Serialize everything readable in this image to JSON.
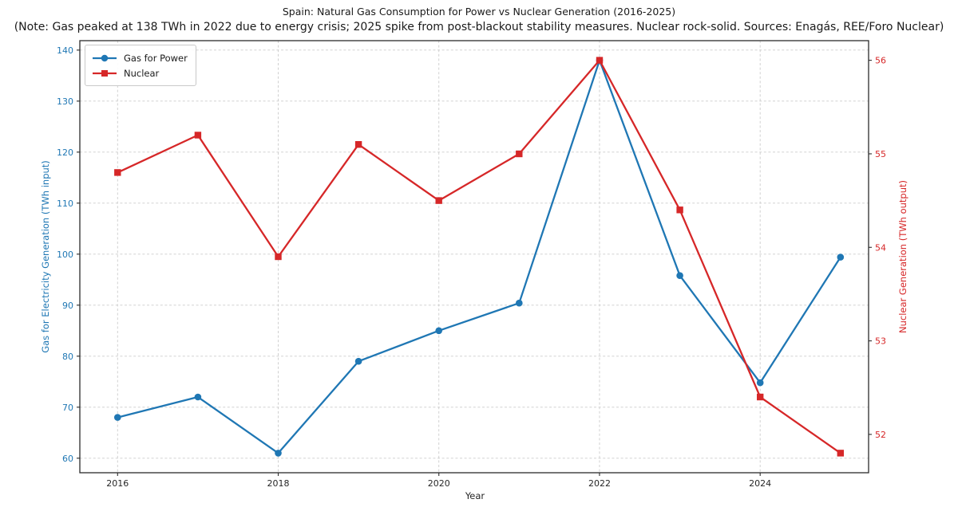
{
  "figure": {
    "title": "Spain: Natural Gas Consumption for Power vs Nuclear Generation (2016-2025)",
    "subtitle": "(Note: Gas peaked at 138 TWh in 2022 due to energy crisis; 2025 spike from post-blackout stability measures. Nuclear rock-solid. Sources: Enagás, REE/Foro Nuclear)"
  },
  "chart_data": {
    "type": "line",
    "x": [
      2016,
      2017,
      2018,
      2019,
      2020,
      2021,
      2022,
      2023,
      2024,
      2025
    ],
    "series": [
      {
        "name": "Gas for Power",
        "axis": "left",
        "color": "#1f77b4",
        "marker": "circle",
        "values": [
          68,
          72,
          61,
          79,
          85,
          90.4,
          138,
          95.8,
          74.8,
          99.4
        ]
      },
      {
        "name": "Nuclear",
        "axis": "right",
        "color": "#d62728",
        "marker": "square",
        "values": [
          54.8,
          55.2,
          53.9,
          55.1,
          54.5,
          55.0,
          56.0,
          54.4,
          52.4,
          51.8
        ]
      }
    ],
    "title": "Spain: Natural Gas Consumption for Power vs Nuclear Generation (2016-2025)",
    "xlabel": "Year",
    "ylabel_left": "Gas for Electricity Generation (TWh input)",
    "ylabel_right": "Nuclear Generation (TWh output)",
    "x_ticks": [
      2016,
      2018,
      2020,
      2022,
      2024
    ],
    "y_ticks_left": [
      60,
      70,
      80,
      90,
      100,
      110,
      120,
      130,
      140
    ],
    "y_ticks_right": [
      52,
      53,
      54,
      55,
      56
    ],
    "xlim": [
      2015.53,
      2025.35
    ],
    "ylim_left": [
      57.15,
      141.85
    ],
    "ylim_right": [
      51.59,
      56.21
    ],
    "grid": true,
    "legend_position": "upper left",
    "colors": {
      "gas": "#1f77b4",
      "nuclear": "#d62728",
      "grid": "#cccccc",
      "text": "#1a1a1a"
    }
  }
}
